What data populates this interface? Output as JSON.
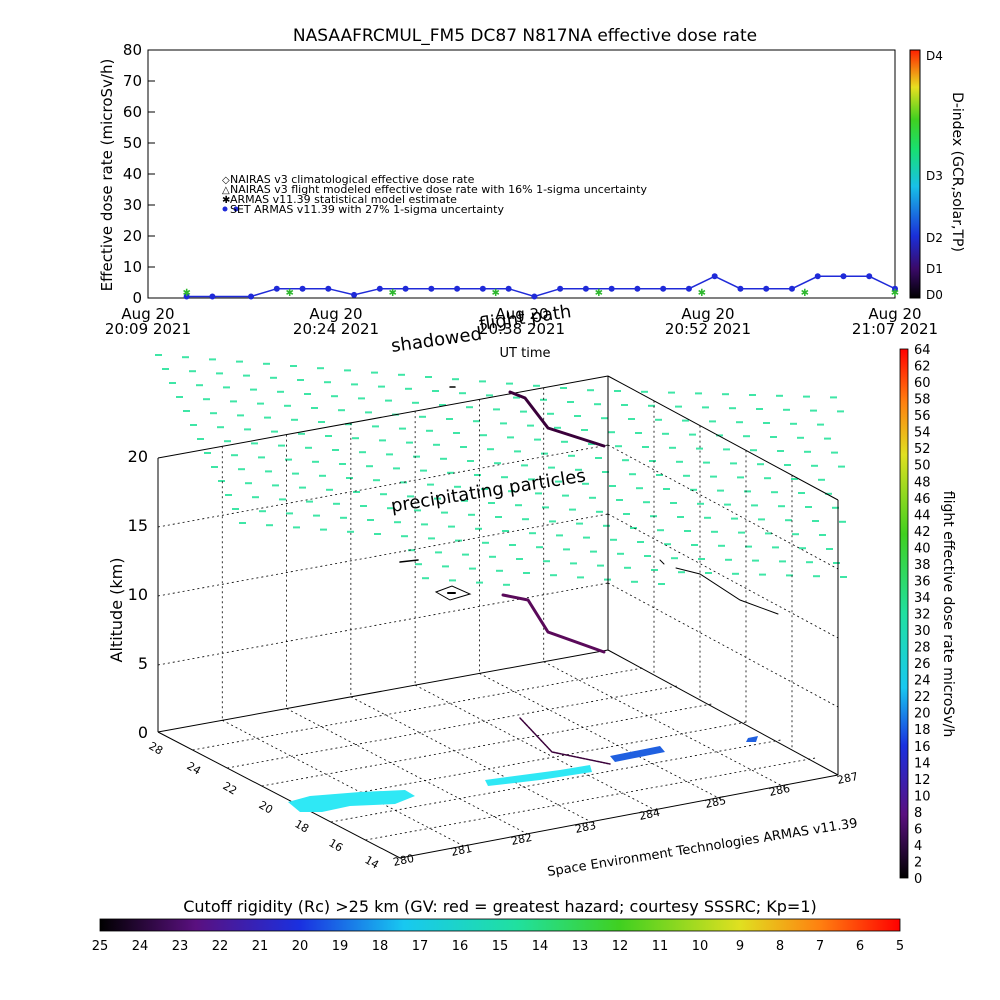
{
  "top_panel": {
    "title": "NASAAFRCMUL_FM5 DC87 N817NA effective dose rate",
    "ylabel": "Effective dose rate (microSv/h)",
    "xlabel": "UT time",
    "right_label": "D-index (GCR,solar,TP)",
    "d_index_ticks": [
      "D0",
      "D1",
      "D2",
      "D3",
      "D4"
    ],
    "legend": [
      "NAIRAS v3 climatological effective dose rate",
      "NAIRAS v3 flight modeled effective dose rate with 16% 1-sigma uncertainty",
      "ARMAS v11.39 statistical model estimate",
      "SET ARMAS v11.39 with 27% 1-sigma uncertainty"
    ],
    "time_ticks": [
      {
        "date": "Aug 20",
        "time": "20:09 2021"
      },
      {
        "date": "Aug 20",
        "time": "20:24 2021"
      },
      {
        "date": "Aug 20",
        "time": "20:38 2021"
      },
      {
        "date": "Aug 20",
        "time": "20:52 2021"
      },
      {
        "date": "Aug 20",
        "time": "21:07 2021"
      }
    ]
  },
  "bottom_panel": {
    "labels": {
      "shadowed": "shadowed",
      "flight_path": "flight path",
      "precipitating": "precipitating particles",
      "credit": "Space Environment Technologies ARMAS v11.39",
      "zlabel": "Altitude (km)",
      "right_label": "flight effective dose rate microSv/h"
    },
    "altitude_ticks": [
      "0",
      "5",
      "10",
      "15",
      "20"
    ],
    "lat_ticks": [
      "28",
      "24",
      "22",
      "20",
      "18",
      "16",
      "14"
    ],
    "lon_ticks": [
      "280",
      "281",
      "282",
      "283",
      "284",
      "285",
      "286",
      "287"
    ],
    "dose_colorbar_ticks": [
      "0",
      "2",
      "4",
      "6",
      "8",
      "10",
      "12",
      "14",
      "16",
      "18",
      "20",
      "22",
      "24",
      "26",
      "28",
      "30",
      "32",
      "34",
      "36",
      "38",
      "40",
      "42",
      "44",
      "46",
      "48",
      "50",
      "52",
      "54",
      "56",
      "58",
      "60",
      "62",
      "64"
    ]
  },
  "cutoff_bar": {
    "title": "Cutoff rigidity (Rc) >25 km (GV: red = greatest hazard; courtesy SSSRC; Kp=1)",
    "ticks": [
      "25",
      "24",
      "23",
      "22",
      "21",
      "20",
      "19",
      "18",
      "17",
      "16",
      "15",
      "14",
      "13",
      "12",
      "11",
      "10",
      "9",
      "8",
      "7",
      "6",
      "5"
    ]
  },
  "chart_data": [
    {
      "type": "line",
      "title": "NASAAFRCMUL_FM5 DC87 N817NA effective dose rate",
      "xlabel": "UT time",
      "ylabel": "Effective dose rate (microSv/h)",
      "x_range": [
        "20:09",
        "21:07"
      ],
      "ylim": [
        0,
        80
      ],
      "grid": false,
      "legend_position": "middle-left",
      "series": [
        {
          "name": "SET ARMAS v11.39 with 27% 1-sigma uncertainty",
          "color": "#1f2ad8",
          "x": [
            "20:12",
            "20:14",
            "20:17",
            "20:19",
            "20:21",
            "20:23",
            "20:25",
            "20:27",
            "20:29",
            "20:31",
            "20:33",
            "20:35",
            "20:37",
            "20:39",
            "20:41",
            "20:43",
            "20:45",
            "20:47",
            "20:49",
            "20:51",
            "20:53",
            "20:55",
            "20:57",
            "20:59",
            "21:01",
            "21:03",
            "21:05",
            "21:07"
          ],
          "y": [
            0.5,
            0.5,
            0.5,
            3,
            3,
            3,
            1,
            3,
            3,
            3,
            3,
            3,
            3,
            0.5,
            3,
            3,
            3,
            3,
            3,
            3,
            7,
            3,
            3,
            3,
            7,
            7,
            7,
            3
          ]
        },
        {
          "name": "ARMAS v11.39 statistical model estimate",
          "color": "#2fb82f",
          "x": [
            "20:12",
            "20:20",
            "20:28",
            "20:36",
            "20:44",
            "20:52",
            "21:00",
            "21:07"
          ],
          "y": [
            2,
            2,
            2,
            2,
            2,
            2,
            2,
            2
          ]
        }
      ]
    }
  ],
  "colors": {
    "dose_scale_high": "#ff0000",
    "dose_scale_low": "#000000",
    "precip_symbols": "#3ee6a6",
    "shadow_fill": "#2fe0f0",
    "track": "#5a0a5a"
  }
}
